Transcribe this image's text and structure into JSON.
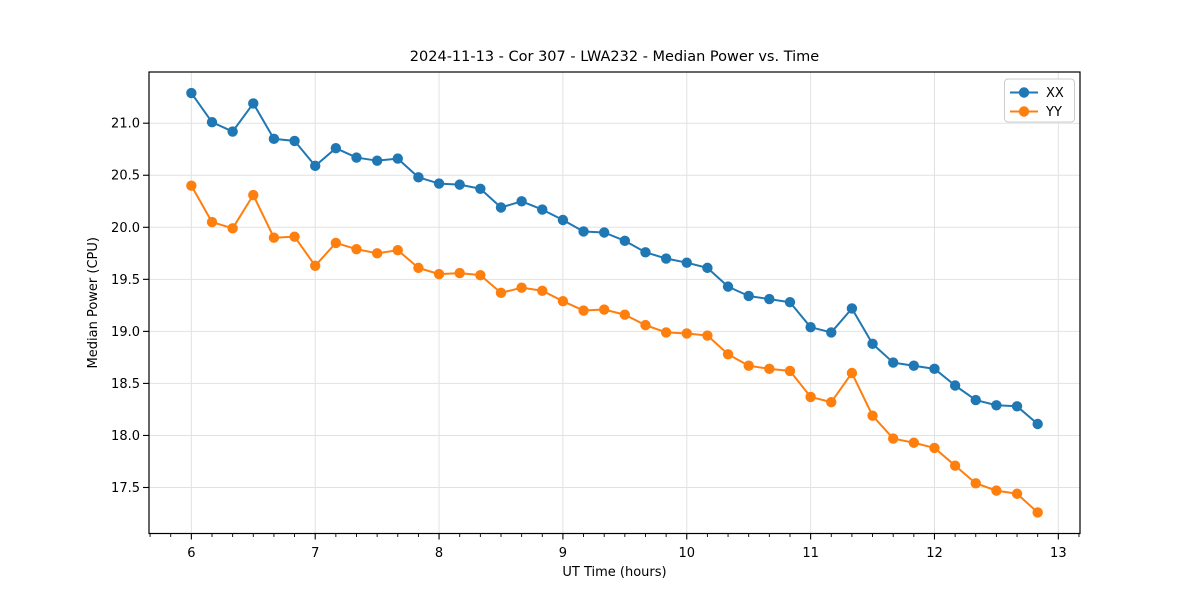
{
  "chart_data": {
    "type": "line",
    "title": "2024-11-13 - Cor 307 - LWA232 - Median Power vs. Time",
    "xlabel": "UT Time (hours)",
    "ylabel": "Median Power (CPU)",
    "xlim": [
      5.658,
      13.175
    ],
    "ylim": [
      17.058,
      21.492
    ],
    "xticks": [
      6,
      7,
      8,
      9,
      10,
      11,
      12,
      13
    ],
    "yticks": [
      17.5,
      18.0,
      18.5,
      19.0,
      19.5,
      20.0,
      20.5,
      21.0
    ],
    "minor_tick_step_x": 0.1666667,
    "grid": true,
    "legend_position": "upper right",
    "background_color": "#ffffff",
    "grid_color": "#e2e2e2",
    "x_start": 6.0,
    "x_step": 0.1666667,
    "series": [
      {
        "name": "XX",
        "color": "#1f77b4",
        "values": [
          21.29,
          21.01,
          20.92,
          21.19,
          20.85,
          20.83,
          20.59,
          20.76,
          20.67,
          20.64,
          20.66,
          20.48,
          20.42,
          20.41,
          20.37,
          20.19,
          20.25,
          20.17,
          20.07,
          19.96,
          19.95,
          19.87,
          19.76,
          19.7,
          19.66,
          19.61,
          19.43,
          19.34,
          19.31,
          19.28,
          19.04,
          18.99,
          19.22,
          18.88,
          18.7,
          18.67,
          18.64,
          18.48,
          18.34,
          18.29,
          18.28,
          18.11
        ]
      },
      {
        "name": "YY",
        "color": "#ff7f0e",
        "values": [
          20.4,
          20.05,
          19.99,
          20.31,
          19.9,
          19.91,
          19.63,
          19.85,
          19.79,
          19.75,
          19.78,
          19.61,
          19.55,
          19.56,
          19.54,
          19.37,
          19.42,
          19.39,
          19.29,
          19.2,
          19.21,
          19.16,
          19.06,
          18.99,
          18.98,
          18.96,
          18.78,
          18.67,
          18.64,
          18.62,
          18.37,
          18.32,
          18.6,
          18.19,
          17.97,
          17.93,
          17.88,
          17.71,
          17.54,
          17.47,
          17.44,
          17.26
        ]
      }
    ]
  }
}
